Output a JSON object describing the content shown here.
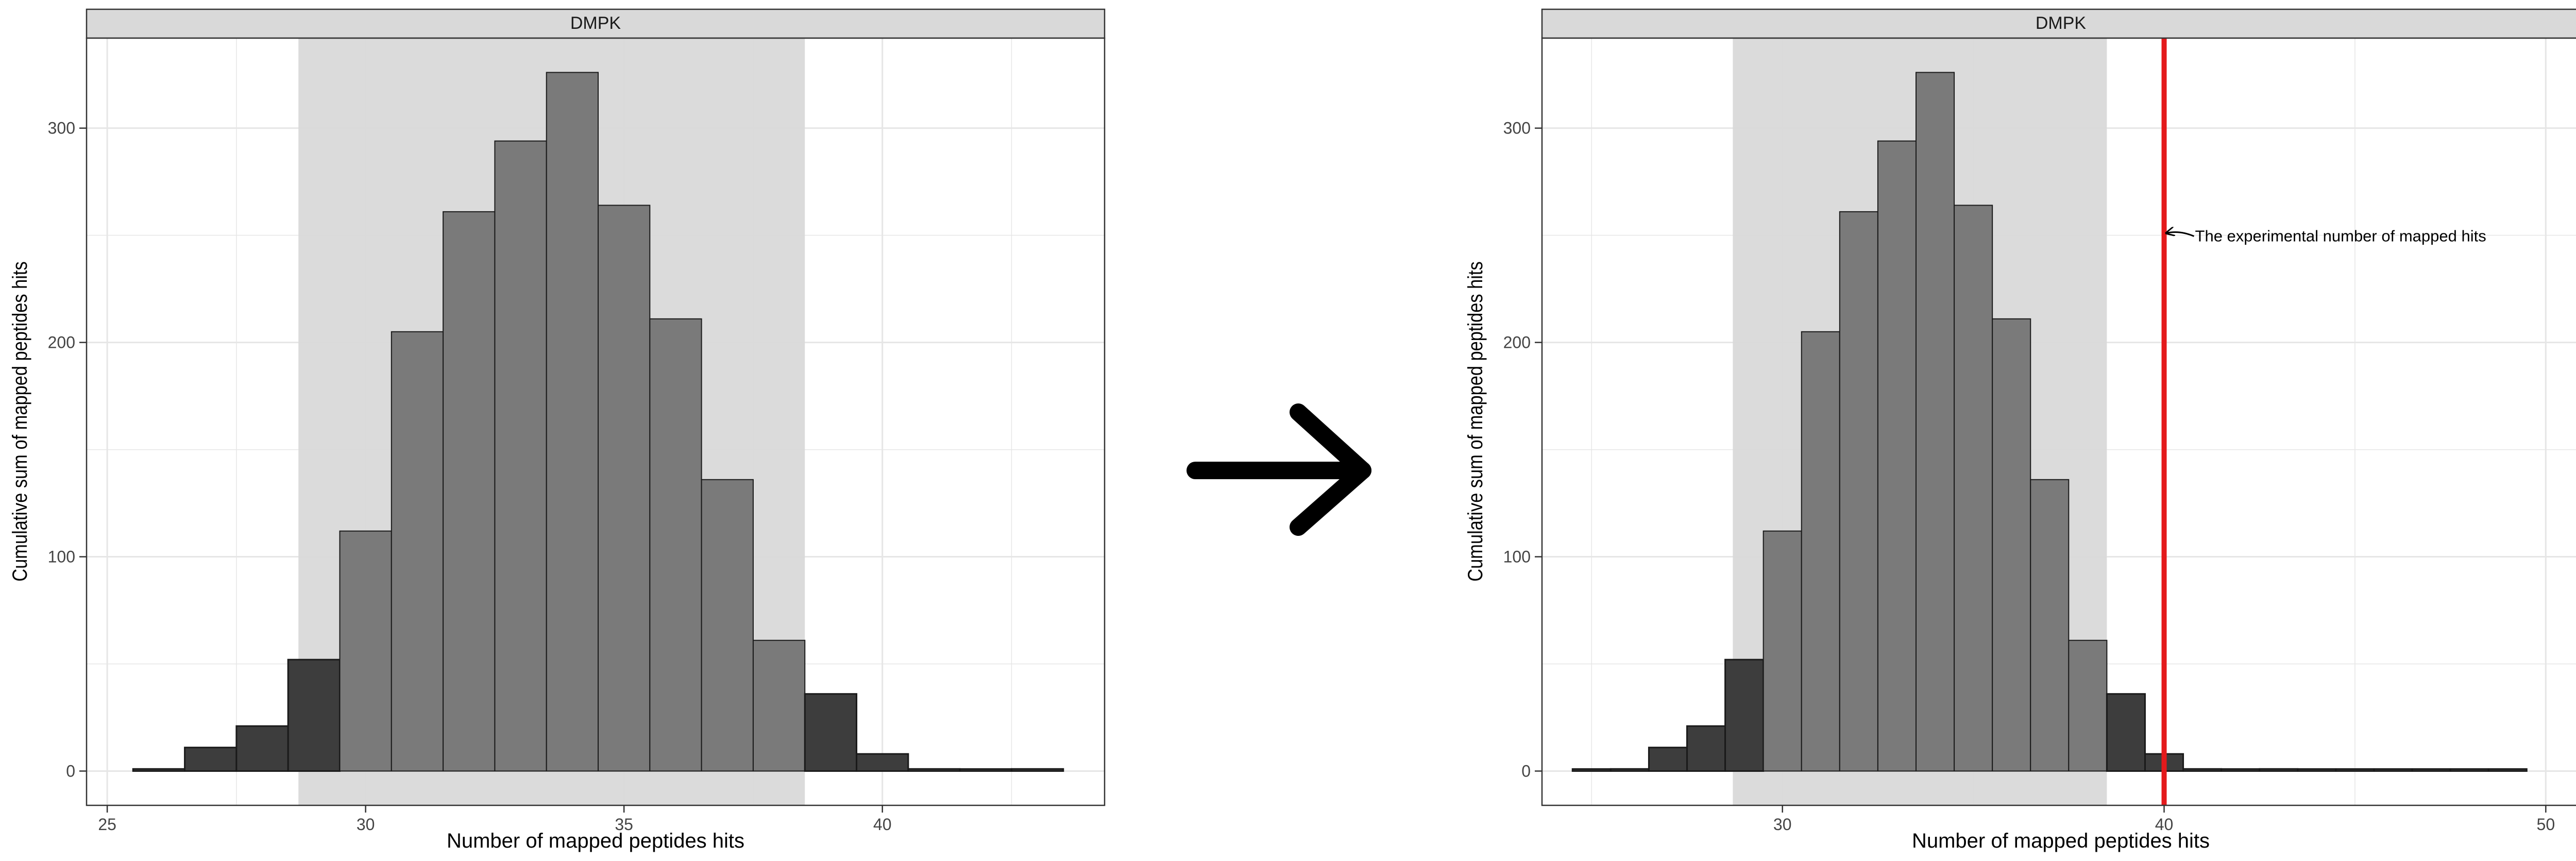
{
  "colors": {
    "strip_fill": "#d9d9d9",
    "band_fill": "#d9d9d9",
    "bar_inside": "#7a7a7a",
    "bar_outside": "#3d3d3d",
    "bar_stroke": "#1a1a1a",
    "grid": "#e6e6e6",
    "red_line": "#e41a1c",
    "arrow": "#000000"
  },
  "arrow_icon": "right-arrow-icon",
  "chart_data": [
    {
      "type": "bar",
      "facet_label": "DMPK",
      "title": "",
      "xlabel": "Number of mapped peptides hits",
      "ylabel": "Cumulative sum of mapped peptides hits",
      "xlim": [
        24.6,
        44.3
      ],
      "ylim": [
        -16,
        342
      ],
      "x_ticks": [
        25,
        30,
        35,
        40
      ],
      "y_ticks": [
        0,
        100,
        200,
        300
      ],
      "band": [
        28.7,
        38.5
      ],
      "bin_width": 1,
      "bins": [
        {
          "x": 26,
          "value": 1
        },
        {
          "x": 27,
          "value": 11
        },
        {
          "x": 28,
          "value": 21
        },
        {
          "x": 29,
          "value": 52
        },
        {
          "x": 30,
          "value": 112
        },
        {
          "x": 31,
          "value": 205
        },
        {
          "x": 32,
          "value": 261
        },
        {
          "x": 33,
          "value": 294
        },
        {
          "x": 34,
          "value": 326
        },
        {
          "x": 35,
          "value": 264
        },
        {
          "x": 36,
          "value": 211
        },
        {
          "x": 37,
          "value": 136
        },
        {
          "x": 38,
          "value": 61
        },
        {
          "x": 39,
          "value": 36
        },
        {
          "x": 40,
          "value": 8
        },
        {
          "x": 41,
          "value": 1
        },
        {
          "x": 42,
          "value": 0
        },
        {
          "x": 43,
          "value": 1
        }
      ]
    },
    {
      "type": "bar",
      "facet_label": "DMPK",
      "title": "",
      "xlabel": "Number of mapped peptides hits",
      "ylabel": "Cumulative sum of mapped peptides hits",
      "xlim": [
        23.7,
        50.9
      ],
      "ylim": [
        -16,
        342
      ],
      "x_ticks": [
        30,
        40,
        50
      ],
      "y_ticks": [
        0,
        100,
        200,
        300
      ],
      "band": [
        28.7,
        38.5
      ],
      "bin_width": 1,
      "bins": [
        {
          "x": 25,
          "value": 0
        },
        {
          "x": 26,
          "value": 1
        },
        {
          "x": 27,
          "value": 11
        },
        {
          "x": 28,
          "value": 21
        },
        {
          "x": 29,
          "value": 52
        },
        {
          "x": 30,
          "value": 112
        },
        {
          "x": 31,
          "value": 205
        },
        {
          "x": 32,
          "value": 261
        },
        {
          "x": 33,
          "value": 294
        },
        {
          "x": 34,
          "value": 326
        },
        {
          "x": 35,
          "value": 264
        },
        {
          "x": 36,
          "value": 211
        },
        {
          "x": 37,
          "value": 136
        },
        {
          "x": 38,
          "value": 61
        },
        {
          "x": 39,
          "value": 36
        },
        {
          "x": 40,
          "value": 8
        },
        {
          "x": 41,
          "value": 1
        },
        {
          "x": 42,
          "value": 0
        },
        {
          "x": 43,
          "value": 1
        },
        {
          "x": 44,
          "value": 0
        },
        {
          "x": 45,
          "value": 0
        },
        {
          "x": 46,
          "value": 0
        },
        {
          "x": 47,
          "value": 0
        },
        {
          "x": 48,
          "value": 0
        },
        {
          "x": 49,
          "value": 0
        }
      ],
      "reference_line": {
        "x": 40.0
      },
      "annotation": {
        "text": "The experimental number of mapped hits",
        "x": 40.0,
        "y": 251
      }
    }
  ]
}
